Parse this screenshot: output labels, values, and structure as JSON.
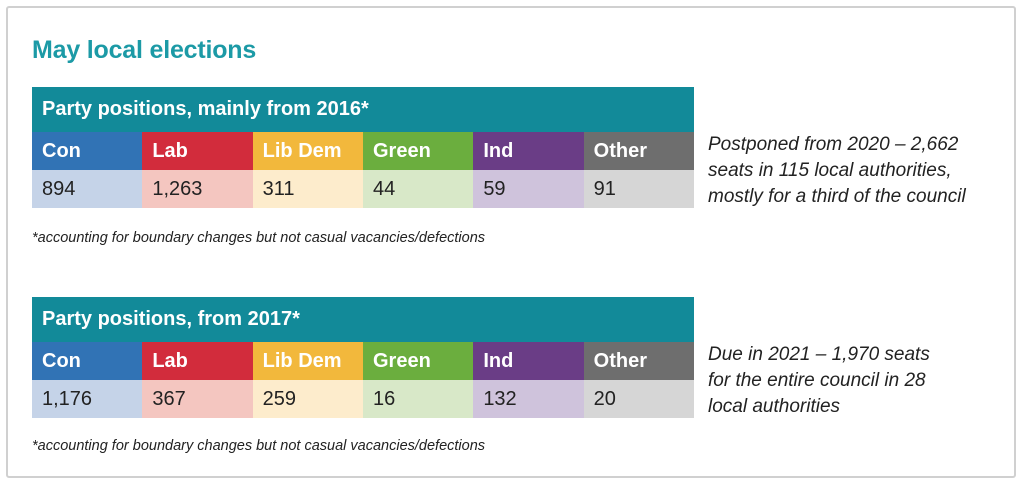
{
  "title": "May local elections",
  "colors": {
    "header": "#128a99",
    "title": "#1c9aa6",
    "Con": {
      "strong": "#3173b5",
      "light": "#c5d3e8"
    },
    "Lab": {
      "strong": "#d22c3c",
      "light": "#f4c6c0"
    },
    "Lib Dem": {
      "strong": "#f2b83c",
      "light": "#fdeccc"
    },
    "Green": {
      "strong": "#6bae3e",
      "light": "#d8e8c8"
    },
    "Ind": {
      "strong": "#6a3d86",
      "light": "#cfc3dc"
    },
    "Other": {
      "strong": "#6e6e6e",
      "light": "#d6d6d6"
    }
  },
  "tables": [
    {
      "heading": "Party positions, mainly from 2016*",
      "parties": [
        "Con",
        "Lab",
        "Lib Dem",
        "Green",
        "Ind",
        "Other"
      ],
      "values": [
        "894",
        "1,263",
        "311",
        "44",
        "59",
        "91"
      ],
      "footnote": "*accounting for boundary changes but not casual vacancies/defections",
      "side_lines": [
        "Postponed from 2020 – 2,662",
        "seats in 115 local authorities,",
        "mostly for a third of the council"
      ]
    },
    {
      "heading": "Party positions, from 2017*",
      "parties": [
        "Con",
        "Lab",
        "Lib Dem",
        "Green",
        "Ind",
        "Other"
      ],
      "values": [
        "1,176",
        "367",
        "259",
        "16",
        "132",
        "20"
      ],
      "footnote": "*accounting for boundary changes but not casual vacancies/defections",
      "side_lines": [
        "Due in 2021 – 1,970 seats",
        "for the entire council in 28",
        "local authorities"
      ]
    }
  ]
}
